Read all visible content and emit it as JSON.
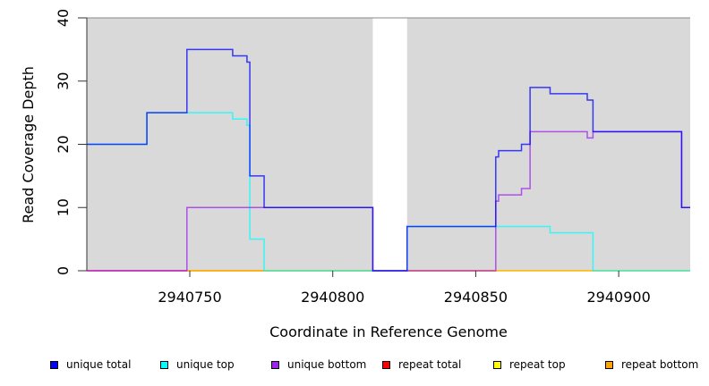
{
  "chart_data": {
    "type": "line",
    "style": "step",
    "xlabel": "Coordinate in Reference Genome",
    "ylabel": "Read Coverage Depth",
    "xlim": [
      2940714,
      2940925
    ],
    "ylim": [
      0,
      40
    ],
    "xticks": [
      2940750,
      2940800,
      2940850,
      2940900
    ],
    "xtick_labels": [
      "2940750",
      "2940800",
      "2940850",
      "2940900"
    ],
    "yticks": [
      0,
      10,
      20,
      30,
      40
    ],
    "ytick_labels": [
      "0",
      "10",
      "20",
      "30",
      "40"
    ],
    "shaded_regions": [
      [
        2940714,
        2940814
      ],
      [
        2940826,
        2940925
      ]
    ],
    "shade_color": "#d9d9d9",
    "series": [
      {
        "name": "repeat total",
        "color": "#ff0000",
        "steps": [
          [
            2940714,
            0
          ],
          [
            2940925,
            0
          ]
        ]
      },
      {
        "name": "repeat top",
        "color": "#ffff00",
        "steps": [
          [
            2940749,
            0
          ],
          [
            2940925,
            0
          ]
        ]
      },
      {
        "name": "repeat bottom",
        "color": "#ffa500",
        "steps": [
          [
            2940749,
            0
          ],
          [
            2940857,
            0
          ]
        ]
      },
      {
        "name": "unique top",
        "color": "#00ffff",
        "steps": [
          [
            2940714,
            20
          ],
          [
            2940735,
            25
          ],
          [
            2940765,
            24
          ],
          [
            2940770,
            23
          ],
          [
            2940771,
            5
          ],
          [
            2940776,
            0
          ],
          [
            2940826,
            7
          ],
          [
            2940876,
            6
          ],
          [
            2940891,
            0
          ],
          [
            2940925,
            0
          ]
        ]
      },
      {
        "name": "unique bottom",
        "color": "#a020f0",
        "steps": [
          [
            2940714,
            0
          ],
          [
            2940749,
            10
          ],
          [
            2940814,
            0
          ],
          [
            2940857,
            11
          ],
          [
            2940858,
            12
          ],
          [
            2940866,
            13
          ],
          [
            2940869,
            22
          ],
          [
            2940889,
            21
          ],
          [
            2940891,
            22
          ],
          [
            2940922,
            10
          ],
          [
            2940925,
            10
          ]
        ]
      },
      {
        "name": "unique total",
        "color": "#0000ff",
        "steps": [
          [
            2940714,
            20
          ],
          [
            2940735,
            25
          ],
          [
            2940749,
            35
          ],
          [
            2940765,
            34
          ],
          [
            2940770,
            33
          ],
          [
            2940771,
            15
          ],
          [
            2940776,
            10
          ],
          [
            2940814,
            0
          ],
          [
            2940826,
            7
          ],
          [
            2940857,
            18
          ],
          [
            2940858,
            19
          ],
          [
            2940866,
            20
          ],
          [
            2940869,
            29
          ],
          [
            2940876,
            28
          ],
          [
            2940889,
            27
          ],
          [
            2940891,
            22
          ],
          [
            2940922,
            10
          ],
          [
            2940925,
            10
          ]
        ]
      }
    ],
    "legend": {
      "placement": "bottom",
      "entries": [
        {
          "label": "unique total",
          "color": "#0000ff"
        },
        {
          "label": "unique top",
          "color": "#00ffff"
        },
        {
          "label": "unique bottom",
          "color": "#a020f0"
        },
        {
          "label": "repeat total",
          "color": "#ff0000"
        },
        {
          "label": "repeat top",
          "color": "#ffff00"
        },
        {
          "label": "repeat bottom",
          "color": "#ffa500"
        }
      ]
    }
  }
}
